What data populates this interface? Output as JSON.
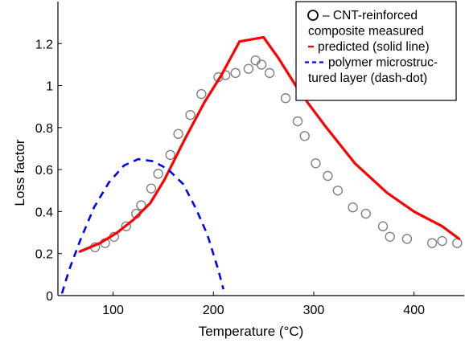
{
  "chart_data": {
    "type": "line",
    "xlabel": "Temperature (°C)",
    "ylabel": "Loss factor",
    "xlim": [
      45,
      450
    ],
    "ylim": [
      0,
      1.4
    ],
    "x_ticks": [
      100,
      200,
      300,
      400
    ],
    "x_tick_labels": [
      "100",
      "200",
      "300",
      "400"
    ],
    "y_ticks": [
      0,
      0.2,
      0.4,
      0.6,
      0.8,
      1,
      1.2
    ],
    "y_tick_labels": [
      "0",
      "0.2",
      "0.4",
      "0.6",
      "0.8",
      "1",
      "1.2"
    ],
    "grid": false,
    "legend_position": "top-right",
    "legend": [
      {
        "marker": "circle",
        "lines": [
          "– CNT-reinforced",
          "composite measured"
        ]
      },
      {
        "marker": "solid-red",
        "lines": [
          "predicted (solid line)"
        ]
      },
      {
        "marker": "dash-blue",
        "lines": [
          "polymer microstruc-",
          "tured layer (dash-dot)"
        ]
      }
    ],
    "series": [
      {
        "name": "CNT-reinforced composite measured",
        "style": "markers",
        "color": "#808080",
        "x": [
          82,
          92,
          101,
          113,
          123,
          128,
          138,
          145,
          157,
          165,
          177,
          188,
          205,
          212,
          222,
          235,
          242,
          248,
          256,
          272,
          284,
          291,
          302,
          314,
          324,
          339,
          352,
          369,
          376,
          393,
          418,
          428,
          443
        ],
        "y": [
          0.23,
          0.25,
          0.28,
          0.33,
          0.39,
          0.43,
          0.51,
          0.58,
          0.67,
          0.77,
          0.86,
          0.96,
          1.04,
          1.05,
          1.06,
          1.08,
          1.12,
          1.1,
          1.06,
          0.94,
          0.83,
          0.76,
          0.63,
          0.57,
          0.5,
          0.42,
          0.39,
          0.33,
          0.28,
          0.27,
          0.25,
          0.26,
          0.25
        ]
      },
      {
        "name": "predicted (solid line)",
        "style": "solid",
        "color": "#ff0000",
        "x": [
          67,
          87,
          104,
          120,
          137,
          151,
          171,
          191,
          208,
          226,
          250,
          265,
          286,
          311,
          341,
          373,
          400,
          428,
          445
        ],
        "y": [
          0.21,
          0.25,
          0.3,
          0.36,
          0.44,
          0.55,
          0.74,
          0.92,
          1.05,
          1.21,
          1.23,
          1.13,
          0.97,
          0.81,
          0.63,
          0.49,
          0.4,
          0.33,
          0.27
        ]
      },
      {
        "name": "polymer microstructured layer (dash-dot)",
        "style": "dashed",
        "color": "#0000ff",
        "x": [
          49,
          56,
          67,
          81,
          96,
          111,
          125,
          140,
          155,
          170,
          183,
          194,
          205,
          210
        ],
        "y": [
          0.01,
          0.12,
          0.26,
          0.42,
          0.54,
          0.62,
          0.65,
          0.64,
          0.6,
          0.53,
          0.41,
          0.29,
          0.12,
          0.03
        ]
      }
    ]
  }
}
